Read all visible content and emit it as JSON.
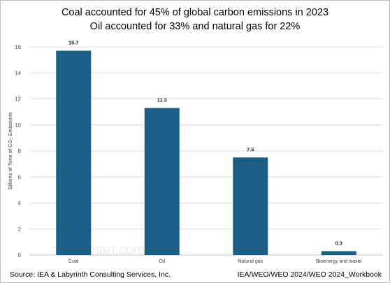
{
  "title_lines": [
    "Coal accounted for 45% of global carbon emissions in 2023",
    "Oil accounted for 33% and natural gas for 22%"
  ],
  "watermark": "artberman.com",
  "source_left": "Source: IEA & Labyrinth Consulting Services, Inc.",
  "source_right": "IEA/WEO/WEO 2024/WEO 2024_Workbook",
  "colors": {
    "bar": "#1b5f86",
    "grid": "#d9d9d9",
    "axis": "#bfbfbf"
  },
  "chart_data": {
    "type": "bar",
    "categories": [
      "Coal",
      "Oil",
      "Natural gas",
      "Bioenergy and waste"
    ],
    "values": [
      15.7,
      11.3,
      7.5,
      0.3
    ],
    "data_labels": [
      "15.7",
      "11.3",
      "7.5",
      "0.3"
    ],
    "ylabel": "Billions of Tons of CO₂ Emissions",
    "ylim": [
      0,
      16
    ],
    "yticks": [
      0,
      2,
      4,
      6,
      8,
      10,
      12,
      14,
      16
    ],
    "grid": true
  }
}
